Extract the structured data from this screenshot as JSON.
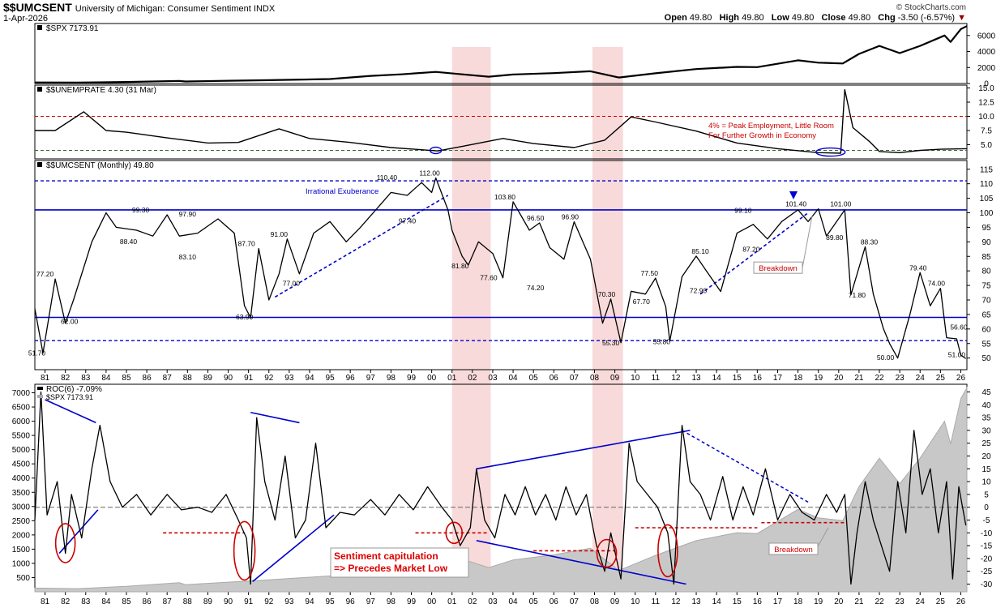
{
  "header": {
    "ticker": "$$UMCSENT",
    "description": "University of Michigan: Consumer Sentiment",
    "exchange": "INDX",
    "date": "1-Apr-2026",
    "brand": "© StockCharts.com",
    "ohlc": {
      "open_label": "Open",
      "open": "49.80",
      "high_label": "High",
      "high": "49.80",
      "low_label": "Low",
      "low": "49.80",
      "close_label": "Close",
      "close": "49.80",
      "chg_label": "Chg",
      "chg": "-3.50 (-6.57%)"
    }
  },
  "colors": {
    "line": "#000000",
    "level": "#0000cc",
    "annot": "#cc0000",
    "recession": "#f4c6c6",
    "area": "#c8c8c8"
  },
  "recessions": [
    [
      2001.0,
      2002.9
    ],
    [
      2007.9,
      2009.4
    ]
  ],
  "x_tick_labels": [
    "81",
    "82",
    "83",
    "84",
    "85",
    "86",
    "87",
    "88",
    "89",
    "90",
    "91",
    "92",
    "93",
    "94",
    "95",
    "96",
    "97",
    "98",
    "99",
    "00",
    "01",
    "02",
    "03",
    "04",
    "05",
    "06",
    "07",
    "08",
    "09",
    "10",
    "11",
    "12",
    "13",
    "14",
    "15",
    "16",
    "17",
    "18",
    "19",
    "20",
    "21",
    "22",
    "23",
    "24",
    "25",
    "26"
  ],
  "chart_data": [
    {
      "type": "line",
      "title": "$SPX 7173.91",
      "ylim": [
        0,
        7500
      ],
      "yticks": [
        0,
        2000,
        4000,
        6000
      ],
      "series": [
        {
          "name": "$SPX",
          "x": [
            1980.5,
            1982.6,
            1985,
            1987.6,
            1987.9,
            1990,
            1992,
            1995,
            1997,
            1998.5,
            2000.2,
            2001.5,
            2002.8,
            2004,
            2006,
            2007.8,
            2009.2,
            2011,
            2013,
            2015,
            2016,
            2018,
            2019,
            2020.2,
            2021,
            2022,
            2023,
            2024,
            2025.2,
            2025.5,
            2026.0,
            2026.3
          ],
          "y": [
            130,
            110,
            190,
            320,
            250,
            340,
            420,
            560,
            950,
            1150,
            1450,
            1150,
            850,
            1120,
            1300,
            1530,
            750,
            1280,
            1800,
            2080,
            2050,
            2900,
            2600,
            2500,
            3700,
            4700,
            3800,
            4700,
            6000,
            5200,
            6800,
            7174
          ]
        }
      ]
    },
    {
      "type": "line",
      "title": "$$UNEMPRATE 4.30 (31 Mar)",
      "ylim": [
        2.5,
        15.5
      ],
      "yticks": [
        5.0,
        7.5,
        10.0,
        12.5,
        15.0
      ],
      "hlines": [
        10.0,
        4.0
      ],
      "annotation": [
        "4% = Peak Employment, Little Room",
        "For Further Growth in Economy"
      ],
      "series": [
        {
          "name": "$$UNEMPRATE",
          "x": [
            1980.5,
            1981.5,
            1982.9,
            1984,
            1985,
            1987,
            1989,
            1990.5,
            1992.5,
            1994,
            1996,
            1998,
            2000.3,
            2001.5,
            2003.5,
            2005,
            2007,
            2008.5,
            2009.8,
            2011,
            2013,
            2015,
            2017,
            2019,
            2020.1,
            2020.3,
            2020.7,
            2021.5,
            2022,
            2023,
            2024,
            2025,
            2026.3
          ],
          "y": [
            7.5,
            7.5,
            10.8,
            7.5,
            7.2,
            6.2,
            5.3,
            5.4,
            7.8,
            6.1,
            5.4,
            4.5,
            3.9,
            4.7,
            6.1,
            5.2,
            4.5,
            5.8,
            9.9,
            9.0,
            7.4,
            5.3,
            4.3,
            3.6,
            3.5,
            14.7,
            8.0,
            5.6,
            3.8,
            3.6,
            4.0,
            4.2,
            4.3
          ]
        }
      ]
    },
    {
      "type": "line",
      "title": "$$UMCSENT (Monthly) 49.80",
      "ylim": [
        46,
        118
      ],
      "yticks": [
        50,
        55,
        60,
        65,
        70,
        75,
        80,
        85,
        90,
        95,
        100,
        105,
        110,
        115
      ],
      "levels_solid": [
        101,
        64
      ],
      "levels_dashed": [
        111,
        56
      ],
      "series": [
        {
          "name": "$$UMCSENT",
          "x": [
            1980.5,
            1980.9,
            1981.5,
            1982.0,
            1982.4,
            1983.3,
            1984.0,
            1984.5,
            1985.5,
            1986.3,
            1987.0,
            1987.6,
            1988.5,
            1989.5,
            1990.3,
            1990.8,
            1991.1,
            1991.5,
            1992.0,
            1992.5,
            1992.9,
            1993.5,
            1994.2,
            1995.0,
            1995.8,
            1996.5,
            1997.5,
            1998.0,
            1998.8,
            1999.5,
            2000.0,
            2000.2,
            2000.8,
            2001.0,
            2001.5,
            2001.8,
            2002.3,
            2003.0,
            2003.5,
            2004.0,
            2004.8,
            2005.3,
            2005.8,
            2006.5,
            2007.0,
            2007.8,
            2008.4,
            2008.8,
            2009.3,
            2009.8,
            2010.5,
            2011.0,
            2011.5,
            2011.7,
            2012.3,
            2013.0,
            2013.5,
            2014.2,
            2015.0,
            2015.8,
            2016.5,
            2017.2,
            2018.0,
            2018.5,
            2019.0,
            2019.4,
            2019.9,
            2020.3,
            2020.6,
            2021.3,
            2021.7,
            2022.2,
            2022.5,
            2022.9,
            2023.5,
            2024.0,
            2024.5,
            2025.0,
            2025.3,
            2025.8,
            2026.0,
            2026.25
          ],
          "y": [
            67,
            51.7,
            77.2,
            62,
            70,
            90,
            100,
            95,
            94,
            92,
            99.3,
            92,
            93,
            97.9,
            93,
            68,
            63.9,
            87.7,
            70,
            79,
            91,
            79,
            93,
            97,
            90,
            95,
            103,
            107,
            106,
            110.4,
            107,
            112,
            101,
            94,
            85,
            82,
            90,
            86,
            77.6,
            103.8,
            94,
            96.5,
            88,
            84,
            96.9,
            84,
            62,
            70.3,
            55.3,
            73,
            72,
            77.5,
            67.7,
            55.8,
            78,
            85.1,
            80,
            72.9,
            93,
            96,
            91,
            97,
            101,
            97,
            101.4,
            92,
            97,
            101,
            71.8,
            88.3,
            72,
            60,
            55,
            50,
            65,
            79.4,
            68,
            74,
            57,
            56.6,
            51,
            49.8
          ]
        }
      ]
    },
    {
      "type": "line",
      "title": "ROC(6) -7.09%",
      "y_right_lim": [
        -33,
        48
      ],
      "yticks_right": [
        -30,
        -25,
        -20,
        -15,
        -10,
        -5,
        0,
        5,
        10,
        15,
        20,
        25,
        30,
        35,
        40,
        45
      ],
      "yticks_left": [
        500,
        1000,
        1500,
        2000,
        2500,
        3000,
        3500,
        4000,
        4500,
        5000,
        5500,
        6000,
        6500,
        7000
      ],
      "overlay_area": "$SPX 7173.91",
      "annotation": [
        "Sentiment capitulation",
        "=> Precedes Market Low"
      ],
      "breakdown_label": "Breakdown",
      "series": [
        {
          "name": "ROC(6)",
          "x": [
            1980.5,
            1980.8,
            1981.1,
            1981.6,
            1982.0,
            1982.3,
            1982.8,
            1983.3,
            1983.7,
            1984.2,
            1984.8,
            1985.5,
            1986.2,
            1987.0,
            1987.7,
            1988.5,
            1989.2,
            1989.9,
            1990.5,
            1990.9,
            1991.1,
            1991.4,
            1991.8,
            1992.3,
            1992.8,
            1993.3,
            1993.8,
            1994.3,
            1994.8,
            1995.5,
            1996.2,
            1997.0,
            1997.7,
            1998.4,
            1999.1,
            1999.8,
            2000.5,
            2001.0,
            2001.4,
            2001.9,
            2002.2,
            2002.6,
            2003.1,
            2003.6,
            2004.1,
            2004.6,
            2005.1,
            2005.6,
            2006.1,
            2006.6,
            2007.1,
            2007.6,
            2008.1,
            2008.5,
            2008.8,
            2009.3,
            2009.7,
            2010.1,
            2010.6,
            2011.1,
            2011.6,
            2011.9,
            2012.3,
            2012.7,
            2013.2,
            2013.7,
            2014.3,
            2014.8,
            2015.3,
            2015.8,
            2016.4,
            2017.0,
            2017.6,
            2018.2,
            2018.8,
            2019.4,
            2019.9,
            2020.3,
            2020.6,
            2020.9,
            2021.3,
            2021.7,
            2022.1,
            2022.5,
            2022.9,
            2023.3,
            2023.7,
            2024.1,
            2024.5,
            2024.9,
            2025.3,
            2025.6,
            2025.9,
            2026.25
          ],
          "y": [
            -5,
            45,
            -3,
            10,
            -18,
            5,
            -12,
            15,
            32,
            10,
            0,
            5,
            -3,
            5,
            -1,
            0,
            -2,
            5,
            -5,
            -12,
            -30,
            35,
            10,
            -5,
            20,
            -12,
            -5,
            25,
            -8,
            -2,
            -3,
            3,
            -3,
            5,
            -1,
            8,
            0,
            -5,
            -15,
            -8,
            15,
            -5,
            -12,
            5,
            -3,
            8,
            -3,
            5,
            -5,
            8,
            -3,
            5,
            -15,
            -25,
            -10,
            -28,
            25,
            10,
            5,
            0,
            -10,
            -30,
            32,
            10,
            5,
            -5,
            12,
            -5,
            8,
            -3,
            15,
            -5,
            5,
            -2,
            -5,
            5,
            -2,
            5,
            -30,
            -10,
            10,
            -5,
            -15,
            -25,
            10,
            -10,
            30,
            5,
            15,
            -10,
            10,
            -28,
            8,
            -7.09
          ]
        }
      ]
    }
  ],
  "ump_labels": [
    {
      "text": "77.20",
      "x": 1981.0,
      "y": 77.2
    },
    {
      "text": "62.00",
      "x": 1982.2,
      "y": 61
    },
    {
      "text": "51.70",
      "x": 1980.6,
      "y": 50
    },
    {
      "text": "99.30",
      "x": 1985.7,
      "y": 99.3
    },
    {
      "text": "88.40",
      "x": 1985.1,
      "y": 88.4
    },
    {
      "text": "97.90",
      "x": 1988.0,
      "y": 97.9
    },
    {
      "text": "83.10",
      "x": 1988.0,
      "y": 83.1
    },
    {
      "text": "87.70",
      "x": 1990.9,
      "y": 87.7
    },
    {
      "text": "63.90",
      "x": 1990.8,
      "y": 62.5
    },
    {
      "text": "91.00",
      "x": 1992.5,
      "y": 91
    },
    {
      "text": "77.00",
      "x": 1993.1,
      "y": 74
    },
    {
      "text": "110.40",
      "x": 1997.8,
      "y": 110.4
    },
    {
      "text": "97.40",
      "x": 1998.8,
      "y": 95.5
    },
    {
      "text": "112.00",
      "x": 1999.9,
      "y": 112
    },
    {
      "text": "103.80",
      "x": 2003.6,
      "y": 103.8
    },
    {
      "text": "81.80",
      "x": 2001.4,
      "y": 80
    },
    {
      "text": "77.60",
      "x": 2002.8,
      "y": 76
    },
    {
      "text": "96.50",
      "x": 2005.1,
      "y": 96.5
    },
    {
      "text": "74.20",
      "x": 2005.1,
      "y": 72.5
    },
    {
      "text": "96.90",
      "x": 2006.8,
      "y": 96.9
    },
    {
      "text": "70.30",
      "x": 2008.6,
      "y": 70.3
    },
    {
      "text": "55.30",
      "x": 2008.8,
      "y": 53.5
    },
    {
      "text": "67.70",
      "x": 2010.3,
      "y": 67.7
    },
    {
      "text": "77.50",
      "x": 2010.7,
      "y": 77.5
    },
    {
      "text": "55.80",
      "x": 2011.3,
      "y": 54
    },
    {
      "text": "72.90",
      "x": 2013.1,
      "y": 71.5
    },
    {
      "text": "85.10",
      "x": 2013.2,
      "y": 85.1
    },
    {
      "text": "99.10",
      "x": 2015.3,
      "y": 99.1
    },
    {
      "text": "87.20",
      "x": 2015.7,
      "y": 85.7
    },
    {
      "text": "101.40",
      "x": 2017.9,
      "y": 101.4
    },
    {
      "text": "101.00",
      "x": 2020.1,
      "y": 101.4
    },
    {
      "text": "89.80",
      "x": 2019.8,
      "y": 89.8
    },
    {
      "text": "71.80",
      "x": 2020.9,
      "y": 70
    },
    {
      "text": "88.30",
      "x": 2021.5,
      "y": 88.3
    },
    {
      "text": "79.40",
      "x": 2023.9,
      "y": 79.4
    },
    {
      "text": "74.00",
      "x": 2024.8,
      "y": 74
    },
    {
      "text": "50.00",
      "x": 2022.3,
      "y": 48.5
    },
    {
      "text": "56.60",
      "x": 2025.9,
      "y": 59
    },
    {
      "text": "51.00",
      "x": 2025.8,
      "y": 49.5
    }
  ],
  "ump_text": {
    "irrational": "Irrational Exuberance",
    "breakdown": "Breakdown"
  }
}
